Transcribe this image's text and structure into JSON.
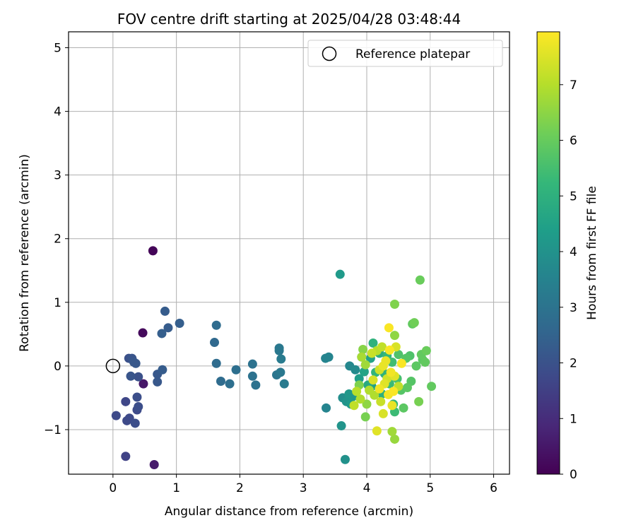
{
  "chart_data": {
    "type": "scatter",
    "title": "FOV centre drift starting at 2025/04/28 03:48:44",
    "xlabel": "Angular distance from reference (arcmin)",
    "ylabel": "Rotation from reference (arcmin)",
    "xlim": [
      -0.7,
      6.25
    ],
    "ylim": [
      -1.7,
      5.25
    ],
    "xticks": [
      0,
      1,
      2,
      3,
      4,
      5,
      6
    ],
    "yticks": [
      -1,
      0,
      1,
      2,
      3,
      4,
      5
    ],
    "grid": true,
    "legend": {
      "position": "top-right",
      "entries": [
        "Reference platepar"
      ]
    },
    "reference_point": {
      "x": 0,
      "y": 0,
      "label": "Reference platepar"
    },
    "colorbar": {
      "label": "Hours from first FF file",
      "min": 0,
      "max": 7.95,
      "ticks": [
        0,
        1,
        2,
        3,
        4,
        5,
        6,
        7
      ],
      "colormap": "viridis"
    },
    "points": [
      {
        "x": 0.63,
        "y": 1.81,
        "c": 0.1
      },
      {
        "x": 0.47,
        "y": 0.52,
        "c": 0.2
      },
      {
        "x": 0.48,
        "y": -0.28,
        "c": 0.5
      },
      {
        "x": 0.65,
        "y": -1.55,
        "c": 0.6
      },
      {
        "x": 0.05,
        "y": -0.78,
        "c": 1.8
      },
      {
        "x": 0.2,
        "y": -1.42,
        "c": 1.6
      },
      {
        "x": 0.2,
        "y": -0.56,
        "c": 1.7
      },
      {
        "x": 0.22,
        "y": -0.86,
        "c": 1.8
      },
      {
        "x": 0.26,
        "y": -0.82,
        "c": 1.8
      },
      {
        "x": 0.35,
        "y": -0.9,
        "c": 1.9
      },
      {
        "x": 0.38,
        "y": -0.69,
        "c": 1.8
      },
      {
        "x": 0.4,
        "y": -0.64,
        "c": 1.9
      },
      {
        "x": 0.38,
        "y": -0.49,
        "c": 1.9
      },
      {
        "x": 0.4,
        "y": -0.17,
        "c": 2.0
      },
      {
        "x": 0.28,
        "y": -0.16,
        "c": 2.1
      },
      {
        "x": 0.25,
        "y": 0.12,
        "c": 2.0
      },
      {
        "x": 0.3,
        "y": 0.12,
        "c": 2.1
      },
      {
        "x": 0.33,
        "y": 0.06,
        "c": 2.2
      },
      {
        "x": 0.36,
        "y": 0.04,
        "c": 2.2
      },
      {
        "x": 0.7,
        "y": -0.13,
        "c": 2.2
      },
      {
        "x": 0.7,
        "y": -0.25,
        "c": 2.2
      },
      {
        "x": 0.78,
        "y": -0.06,
        "c": 2.3
      },
      {
        "x": 0.77,
        "y": 0.51,
        "c": 2.4
      },
      {
        "x": 0.82,
        "y": 0.86,
        "c": 2.3
      },
      {
        "x": 0.87,
        "y": 0.6,
        "c": 2.3
      },
      {
        "x": 1.05,
        "y": 0.67,
        "c": 2.4
      },
      {
        "x": 1.6,
        "y": 0.37,
        "c": 2.7
      },
      {
        "x": 1.63,
        "y": 0.64,
        "c": 2.8
      },
      {
        "x": 1.63,
        "y": 0.04,
        "c": 2.8
      },
      {
        "x": 1.7,
        "y": -0.24,
        "c": 2.8
      },
      {
        "x": 1.84,
        "y": -0.28,
        "c": 2.9
      },
      {
        "x": 1.94,
        "y": -0.06,
        "c": 2.9
      },
      {
        "x": 2.2,
        "y": 0.03,
        "c": 3.0
      },
      {
        "x": 2.2,
        "y": -0.16,
        "c": 3.0
      },
      {
        "x": 2.25,
        "y": -0.3,
        "c": 3.0
      },
      {
        "x": 2.58,
        "y": -0.14,
        "c": 3.1
      },
      {
        "x": 2.62,
        "y": 0.28,
        "c": 3.2
      },
      {
        "x": 2.62,
        "y": 0.24,
        "c": 3.2
      },
      {
        "x": 2.64,
        "y": -0.1,
        "c": 3.2
      },
      {
        "x": 2.65,
        "y": 0.11,
        "c": 3.3
      },
      {
        "x": 2.7,
        "y": -0.28,
        "c": 3.3
      },
      {
        "x": 3.35,
        "y": 0.12,
        "c": 3.6
      },
      {
        "x": 3.4,
        "y": 0.14,
        "c": 3.6
      },
      {
        "x": 3.36,
        "y": -0.66,
        "c": 3.6
      },
      {
        "x": 3.58,
        "y": 1.44,
        "c": 4.3
      },
      {
        "x": 3.6,
        "y": -0.94,
        "c": 4.1
      },
      {
        "x": 3.66,
        "y": -1.47,
        "c": 4.0
      },
      {
        "x": 3.62,
        "y": -0.5,
        "c": 3.9
      },
      {
        "x": 3.68,
        "y": -0.56,
        "c": 4.1
      },
      {
        "x": 3.72,
        "y": -0.44,
        "c": 4.2
      },
      {
        "x": 3.75,
        "y": -0.6,
        "c": 4.3
      },
      {
        "x": 3.78,
        "y": -0.48,
        "c": 4.2
      },
      {
        "x": 3.73,
        "y": 0.0,
        "c": 3.7
      },
      {
        "x": 3.82,
        "y": -0.06,
        "c": 3.8
      },
      {
        "x": 3.88,
        "y": -0.2,
        "c": 4.4
      },
      {
        "x": 3.92,
        "y": 0.14,
        "c": 4.3
      },
      {
        "x": 3.96,
        "y": -0.09,
        "c": 4.6
      },
      {
        "x": 4.02,
        "y": -0.3,
        "c": 4.8
      },
      {
        "x": 4.06,
        "y": 0.12,
        "c": 4.6
      },
      {
        "x": 4.08,
        "y": -0.32,
        "c": 4.5
      },
      {
        "x": 4.1,
        "y": 0.36,
        "c": 5.1
      },
      {
        "x": 4.14,
        "y": -0.1,
        "c": 5.2
      },
      {
        "x": 4.2,
        "y": 0.2,
        "c": 4.9
      },
      {
        "x": 4.24,
        "y": -0.44,
        "c": 5.0
      },
      {
        "x": 4.28,
        "y": -0.12,
        "c": 5.1
      },
      {
        "x": 4.32,
        "y": 0.16,
        "c": 5.3
      },
      {
        "x": 4.36,
        "y": -0.28,
        "c": 5.4
      },
      {
        "x": 4.4,
        "y": 0.06,
        "c": 5.5
      },
      {
        "x": 4.42,
        "y": -0.6,
        "c": 5.3
      },
      {
        "x": 4.44,
        "y": -0.72,
        "c": 5.4
      },
      {
        "x": 4.48,
        "y": -0.2,
        "c": 5.6
      },
      {
        "x": 4.5,
        "y": 0.18,
        "c": 5.7
      },
      {
        "x": 4.54,
        "y": -0.38,
        "c": 5.8
      },
      {
        "x": 4.58,
        "y": -0.66,
        "c": 5.9
      },
      {
        "x": 4.62,
        "y": 0.12,
        "c": 5.8
      },
      {
        "x": 4.64,
        "y": -0.34,
        "c": 5.9
      },
      {
        "x": 4.68,
        "y": 0.16,
        "c": 5.7
      },
      {
        "x": 4.7,
        "y": -0.24,
        "c": 5.8
      },
      {
        "x": 4.72,
        "y": 0.66,
        "c": 6.0
      },
      {
        "x": 4.75,
        "y": 0.68,
        "c": 6.2
      },
      {
        "x": 4.78,
        "y": 0.0,
        "c": 5.9
      },
      {
        "x": 4.82,
        "y": -0.56,
        "c": 6.3
      },
      {
        "x": 4.84,
        "y": 1.35,
        "c": 6.1
      },
      {
        "x": 4.86,
        "y": 0.18,
        "c": 6.0
      },
      {
        "x": 4.88,
        "y": 0.1,
        "c": 5.9
      },
      {
        "x": 4.92,
        "y": 0.06,
        "c": 6.0
      },
      {
        "x": 4.94,
        "y": 0.24,
        "c": 6.1
      },
      {
        "x": 5.02,
        "y": -0.32,
        "c": 6.0
      },
      {
        "x": 4.44,
        "y": 0.97,
        "c": 6.4
      },
      {
        "x": 4.44,
        "y": 0.48,
        "c": 6.6
      },
      {
        "x": 4.4,
        "y": -1.03,
        "c": 6.8
      },
      {
        "x": 4.44,
        "y": -1.15,
        "c": 6.7
      },
      {
        "x": 3.88,
        "y": -0.3,
        "c": 6.4
      },
      {
        "x": 3.94,
        "y": 0.26,
        "c": 6.5
      },
      {
        "x": 3.98,
        "y": -0.8,
        "c": 6.3
      },
      {
        "x": 4.0,
        "y": -0.6,
        "c": 6.6
      },
      {
        "x": 3.9,
        "y": -0.52,
        "c": 7.0
      },
      {
        "x": 3.84,
        "y": -0.4,
        "c": 7.1
      },
      {
        "x": 3.8,
        "y": -0.62,
        "c": 7.2
      },
      {
        "x": 3.92,
        "y": 0.14,
        "c": 6.9
      },
      {
        "x": 3.98,
        "y": 0.02,
        "c": 6.8
      },
      {
        "x": 4.04,
        "y": -0.38,
        "c": 7.0
      },
      {
        "x": 4.08,
        "y": 0.2,
        "c": 7.3
      },
      {
        "x": 4.12,
        "y": -0.46,
        "c": 7.0
      },
      {
        "x": 4.16,
        "y": -1.02,
        "c": 7.6
      },
      {
        "x": 4.16,
        "y": 0.24,
        "c": 7.1
      },
      {
        "x": 4.2,
        "y": -0.06,
        "c": 7.4
      },
      {
        "x": 4.22,
        "y": -0.56,
        "c": 7.3
      },
      {
        "x": 4.24,
        "y": 0.3,
        "c": 7.2
      },
      {
        "x": 4.26,
        "y": -0.75,
        "c": 7.5
      },
      {
        "x": 4.28,
        "y": -0.28,
        "c": 7.6
      },
      {
        "x": 4.3,
        "y": 0.08,
        "c": 7.7
      },
      {
        "x": 4.32,
        "y": -0.2,
        "c": 7.4
      },
      {
        "x": 4.34,
        "y": -0.45,
        "c": 7.8
      },
      {
        "x": 4.35,
        "y": 0.6,
        "c": 7.9
      },
      {
        "x": 4.36,
        "y": 0.25,
        "c": 7.9
      },
      {
        "x": 4.38,
        "y": -0.1,
        "c": 7.8
      },
      {
        "x": 4.4,
        "y": -0.62,
        "c": 7.7
      },
      {
        "x": 4.42,
        "y": -0.4,
        "c": 7.9
      },
      {
        "x": 4.44,
        "y": -0.16,
        "c": 7.6
      },
      {
        "x": 4.46,
        "y": 0.3,
        "c": 7.5
      },
      {
        "x": 4.5,
        "y": -0.32,
        "c": 7.2
      },
      {
        "x": 4.55,
        "y": 0.04,
        "c": 7.9
      },
      {
        "x": 4.26,
        "y": 0.0,
        "c": 7.7
      },
      {
        "x": 4.2,
        "y": -0.36,
        "c": 7.8
      },
      {
        "x": 4.1,
        "y": -0.22,
        "c": 7.5
      }
    ]
  }
}
